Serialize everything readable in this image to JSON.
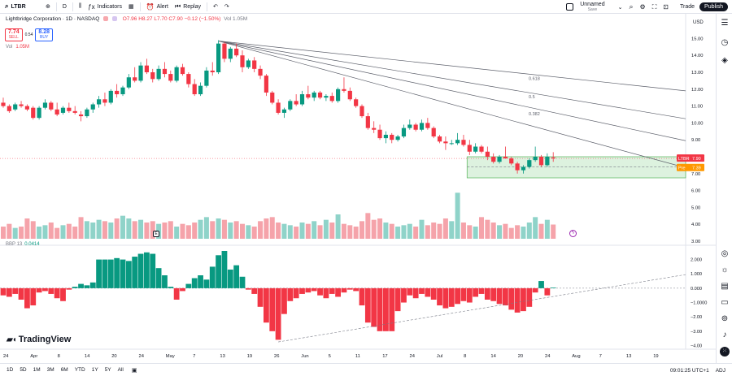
{
  "toolbar": {
    "symbol": "LTBR",
    "interval": "D",
    "indicators_label": "Indicators",
    "alert_label": "Alert",
    "replay_label": "Replay",
    "layout_name": "Unnamed",
    "layout_status": "Save",
    "trade_label": "Trade",
    "publish_label": "Publish"
  },
  "legend": {
    "title": "Lightbridge Corporation · 1D · NASDAQ",
    "ohlc": "O7.96 H8.27 L7.70 C7.90 −0.12 (−1.50%)",
    "vol_short": "Vol 1.05M",
    "sell_price": "7.74",
    "sell_label": "SELL",
    "spread": "0.54",
    "buy_price": "8.28",
    "buy_label": "BUY",
    "volume_label": "Vol",
    "volume_value": "1.05M",
    "bbp_label": "BBP 13",
    "bbp_value": "0.0414"
  },
  "price_axis": {
    "currency": "USD",
    "labels": [
      "15.00",
      "14.00",
      "13.00",
      "12.00",
      "11.00",
      "10.00",
      "9.00",
      "7.00",
      "6.00",
      "5.00",
      "4.00",
      "3.00"
    ],
    "symbol_tag": "LTBR",
    "last_price": "7.90",
    "pre_tag": "Pre",
    "pre_price": "7.39"
  },
  "osc_axis": {
    "labels": [
      "2.000",
      "1.000",
      "0.000",
      "−1.0000",
      "−2.00",
      "−3.00",
      "−4.00"
    ]
  },
  "fan_labels": [
    "0.618",
    "0.5",
    "0.382"
  ],
  "time_axis": {
    "labels": [
      "24",
      "Apr",
      "8",
      "14",
      "20",
      "24",
      "May",
      "7",
      "13",
      "19",
      "26",
      "Jun",
      "5",
      "11",
      "17",
      "24",
      "Jul",
      "8",
      "14",
      "20",
      "24",
      "Aug",
      "7",
      "13",
      "19"
    ]
  },
  "bottom": {
    "ranges": [
      "1D",
      "5D",
      "1M",
      "3M",
      "6M",
      "YTD",
      "1Y",
      "5Y",
      "All"
    ],
    "clock": "09:01:25 UTC+1",
    "adj_label": "ADJ",
    "brand": "TradingView",
    "earnings_badge": "E"
  },
  "colors": {
    "up": "#089981",
    "down": "#f23645",
    "up_vol": "#8fd3c9",
    "down_vol": "#f5a3aa",
    "zone_fill": "#d8f0da",
    "zone_border": "#4caf50",
    "fan_line": "#5d606b"
  },
  "chart_data": [
    {
      "type": "candlestick",
      "title": "Lightbridge Corporation · 1D · NASDAQ",
      "ylabel": "USD",
      "ylim": [
        3,
        15.5
      ],
      "x_ticks": [
        "24",
        "Apr",
        "8",
        "14",
        "20",
        "24",
        "May",
        "7",
        "13",
        "19",
        "26",
        "Jun",
        "5",
        "11",
        "17",
        "24",
        "Jul",
        "8",
        "14",
        "20",
        "24",
        "Aug",
        "7",
        "13",
        "19"
      ],
      "candles": [
        [
          11.2,
          11.5,
          10.9,
          11.0
        ],
        [
          11.0,
          11.1,
          10.6,
          10.7
        ],
        [
          10.8,
          11.2,
          10.7,
          11.1
        ],
        [
          11.1,
          11.3,
          10.9,
          11.0
        ],
        [
          11.0,
          11.1,
          10.7,
          10.8
        ],
        [
          10.9,
          11.0,
          10.2,
          10.3
        ],
        [
          10.3,
          11.0,
          10.2,
          10.9
        ],
        [
          10.9,
          11.4,
          10.8,
          11.2
        ],
        [
          11.2,
          11.3,
          10.7,
          10.8
        ],
        [
          10.8,
          11.2,
          10.4,
          10.5
        ],
        [
          10.6,
          11.0,
          10.5,
          10.9
        ],
        [
          10.9,
          11.2,
          10.6,
          10.7
        ],
        [
          10.7,
          11.0,
          10.5,
          10.6
        ],
        [
          10.5,
          10.7,
          10.1,
          10.4
        ],
        [
          10.4,
          10.9,
          10.3,
          10.8
        ],
        [
          10.8,
          11.2,
          10.6,
          11.1
        ],
        [
          11.1,
          11.6,
          10.9,
          11.4
        ],
        [
          11.4,
          11.8,
          11.0,
          11.2
        ],
        [
          11.2,
          12.0,
          11.1,
          11.9
        ],
        [
          11.9,
          12.3,
          11.5,
          11.7
        ],
        [
          11.7,
          12.2,
          11.6,
          12.1
        ],
        [
          12.1,
          12.9,
          12.0,
          12.7
        ],
        [
          12.7,
          13.3,
          12.4,
          12.5
        ],
        [
          12.5,
          13.6,
          12.4,
          13.4
        ],
        [
          13.4,
          13.8,
          12.9,
          13.0
        ],
        [
          13.0,
          13.2,
          12.4,
          12.6
        ],
        [
          12.6,
          13.4,
          12.5,
          13.2
        ],
        [
          13.2,
          13.6,
          12.7,
          12.9
        ],
        [
          12.9,
          13.1,
          12.4,
          12.5
        ],
        [
          12.5,
          13.4,
          12.4,
          13.3
        ],
        [
          13.3,
          13.5,
          12.8,
          12.9
        ],
        [
          12.9,
          13.0,
          12.1,
          12.3
        ],
        [
          12.3,
          12.6,
          11.6,
          11.7
        ],
        [
          11.7,
          12.4,
          11.6,
          12.2
        ],
        [
          12.2,
          13.3,
          12.1,
          13.1
        ],
        [
          13.1,
          13.6,
          12.8,
          13.0
        ],
        [
          13.0,
          14.9,
          12.9,
          14.7
        ],
        [
          14.7,
          14.8,
          13.6,
          13.8
        ],
        [
          13.8,
          14.5,
          13.6,
          14.4
        ],
        [
          14.4,
          14.7,
          13.9,
          14.0
        ],
        [
          14.0,
          14.3,
          13.0,
          13.3
        ],
        [
          13.3,
          13.8,
          13.2,
          13.7
        ],
        [
          13.7,
          13.9,
          13.0,
          13.2
        ],
        [
          13.2,
          13.4,
          12.6,
          12.8
        ],
        [
          12.8,
          12.9,
          11.6,
          11.8
        ],
        [
          11.8,
          11.9,
          11.1,
          11.2
        ],
        [
          11.2,
          11.4,
          10.5,
          10.6
        ],
        [
          10.6,
          10.9,
          10.3,
          10.8
        ],
        [
          10.8,
          11.4,
          10.7,
          11.3
        ],
        [
          11.3,
          11.7,
          11.0,
          11.1
        ],
        [
          11.1,
          11.9,
          11.0,
          11.7
        ],
        [
          11.7,
          12.2,
          11.4,
          11.5
        ],
        [
          11.5,
          11.9,
          11.3,
          11.8
        ],
        [
          11.8,
          11.9,
          11.4,
          11.5
        ],
        [
          11.5,
          11.7,
          11.3,
          11.6
        ],
        [
          11.6,
          11.8,
          11.2,
          11.3
        ],
        [
          11.3,
          12.1,
          11.2,
          12.0
        ],
        [
          12.0,
          12.7,
          11.8,
          11.9
        ],
        [
          11.9,
          12.1,
          11.3,
          11.4
        ],
        [
          11.4,
          11.5,
          10.9,
          11.0
        ],
        [
          11.0,
          11.1,
          10.3,
          10.4
        ],
        [
          10.4,
          10.6,
          9.6,
          9.7
        ],
        [
          9.7,
          10.1,
          9.4,
          9.6
        ],
        [
          9.6,
          9.9,
          9.0,
          9.1
        ],
        [
          9.1,
          9.5,
          8.8,
          9.3
        ],
        [
          9.3,
          9.4,
          8.8,
          9.0
        ],
        [
          9.0,
          9.3,
          8.9,
          9.2
        ],
        [
          9.2,
          9.9,
          9.1,
          9.7
        ],
        [
          9.7,
          10.2,
          9.6,
          9.9
        ],
        [
          9.9,
          10.0,
          9.5,
          9.6
        ],
        [
          9.6,
          10.2,
          9.5,
          10.0
        ],
        [
          10.0,
          10.3,
          9.6,
          9.7
        ],
        [
          9.7,
          9.8,
          9.1,
          9.2
        ],
        [
          9.2,
          9.3,
          8.8,
          8.9
        ],
        [
          8.9,
          9.2,
          8.4,
          8.8
        ],
        [
          8.8,
          9.0,
          8.7,
          8.8
        ],
        [
          8.8,
          9.4,
          8.7,
          9.0
        ],
        [
          9.0,
          9.3,
          8.6,
          8.7
        ],
        [
          8.7,
          9.0,
          8.1,
          8.3
        ],
        [
          8.3,
          8.8,
          8.2,
          8.6
        ],
        [
          8.6,
          8.7,
          8.2,
          8.3
        ],
        [
          8.3,
          8.6,
          7.8,
          8.0
        ],
        [
          8.0,
          8.2,
          7.6,
          7.7
        ],
        [
          7.7,
          8.1,
          7.6,
          8.0
        ],
        [
          8.0,
          8.6,
          7.9,
          7.9
        ],
        [
          7.9,
          8.0,
          7.5,
          7.6
        ],
        [
          7.6,
          7.7,
          7.0,
          7.2
        ],
        [
          7.2,
          7.5,
          7.0,
          7.4
        ],
        [
          7.4,
          7.9,
          7.3,
          7.8
        ],
        [
          7.8,
          8.6,
          7.7,
          8.0
        ],
        [
          8.0,
          8.1,
          7.4,
          7.5
        ],
        [
          7.5,
          8.2,
          7.4,
          8.0
        ],
        [
          7.96,
          8.27,
          7.7,
          7.9
        ]
      ],
      "volume_millions": [
        0.9,
        1.1,
        0.8,
        0.9,
        1.5,
        1.3,
        0.9,
        1.0,
        1.2,
        0.8,
        1.0,
        1.1,
        0.9,
        1.6,
        1.3,
        1.2,
        1.4,
        1.3,
        1.2,
        1.5,
        1.7,
        1.5,
        1.3,
        1.4,
        1.2,
        1.3,
        1.1,
        1.2,
        1.3,
        0.9,
        1.1,
        1.0,
        1.2,
        1.4,
        1.6,
        1.3,
        1.5,
        1.4,
        1.2,
        1.3,
        1.1,
        1.0,
        0.9,
        1.3,
        1.5,
        1.6,
        1.2,
        1.1,
        1.0,
        0.9,
        1.2,
        1.1,
        1.3,
        1.0,
        1.4,
        1.2,
        1.8,
        1.1,
        1.0,
        0.9,
        1.3,
        1.9,
        1.4,
        1.5,
        1.2,
        1.1,
        0.9,
        1.0,
        1.1,
        0.9,
        1.4,
        1.0,
        1.2,
        1.1,
        1.5,
        1.3,
        3.4,
        1.2,
        1.0,
        0.9,
        1.6,
        1.4,
        1.2,
        1.0,
        1.1,
        0.8,
        1.0,
        0.9,
        1.2,
        1.6,
        1.1,
        1.4,
        1.05
      ],
      "pre_market_price": 7.39,
      "last_price": 7.9
    },
    {
      "type": "bar",
      "title": "BBP 13",
      "ylim": [
        -4,
        2.5
      ],
      "last_value": 0.0414,
      "values": [
        -0.5,
        -0.6,
        -0.4,
        -0.8,
        -1.4,
        -1.2,
        -0.3,
        -0.2,
        -0.4,
        -0.7,
        -0.9,
        -0.1,
        0.1,
        0.3,
        0.2,
        0.4,
        2.0,
        2.0,
        2.0,
        2.1,
        2.0,
        1.9,
        2.2,
        2.4,
        2.5,
        2.4,
        1.4,
        0.9,
        0.1,
        -0.8,
        -0.2,
        0.3,
        0.7,
        0.9,
        0.6,
        1.5,
        2.3,
        2.6,
        1.3,
        1.6,
        0.8,
        -0.1,
        -0.4,
        -1.3,
        -2.4,
        -3.0,
        -3.6,
        -1.8,
        -0.9,
        -0.7,
        -0.4,
        -0.3,
        -0.2,
        -0.5,
        -0.7,
        -0.4,
        -0.6,
        -0.3,
        -0.1,
        -0.2,
        -1.2,
        -2.4,
        -2.7,
        -3.0,
        -3.0,
        -3.0,
        -1.6,
        -1.0,
        -0.5,
        -0.7,
        -0.4,
        -0.6,
        -0.8,
        -1.2,
        -1.4,
        -1.3,
        -1.1,
        -0.9,
        -1.0,
        -0.6,
        -0.4,
        -0.8,
        -0.9,
        -1.1,
        -1.2,
        -1.5,
        -1.7,
        -1.6,
        -1.3,
        -0.3,
        0.5,
        -0.5,
        0.04
      ]
    }
  ]
}
